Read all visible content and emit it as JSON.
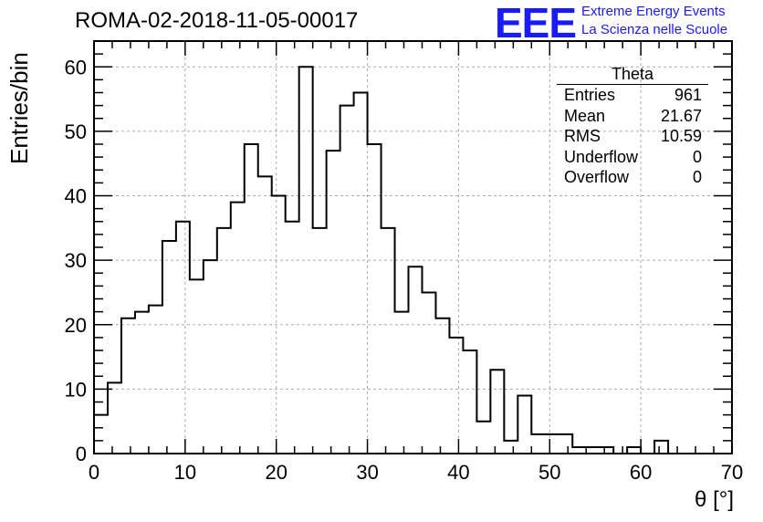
{
  "title": "ROMA-02-2018-11-05-00017",
  "logo": {
    "mark": "EEE",
    "line1": "Extreme Energy Events",
    "line2": "La Scienza nelle Scuole",
    "color": "#1a1aff"
  },
  "stats": {
    "name": "Theta",
    "rows": [
      {
        "label": "Entries",
        "value": "961"
      },
      {
        "label": "Mean",
        "value": "21.67"
      },
      {
        "label": "RMS",
        "value": "10.59"
      },
      {
        "label": "Underflow",
        "value": "0"
      },
      {
        "label": "Overflow",
        "value": "0"
      }
    ]
  },
  "chart_data": {
    "type": "bar",
    "histogram": true,
    "title": "ROMA-02-2018-11-05-00017",
    "xlabel": "θ [°]",
    "ylabel": "Entries/bin",
    "xlim": [
      0,
      70
    ],
    "ylim": [
      0,
      64
    ],
    "xticks": [
      0,
      10,
      20,
      30,
      40,
      50,
      60,
      70
    ],
    "yticks": [
      0,
      10,
      20,
      30,
      40,
      50,
      60
    ],
    "grid": true,
    "bin_width": 1.5,
    "bin_edges_start": 0,
    "values": [
      6,
      11,
      21,
      22,
      23,
      33,
      36,
      27,
      30,
      35,
      39,
      48,
      43,
      40,
      36,
      60,
      35,
      47,
      54,
      56,
      48,
      35,
      22,
      29,
      25,
      21,
      18,
      16,
      5,
      13,
      2,
      9,
      3,
      3,
      3,
      1,
      1,
      1,
      0,
      1,
      0,
      2,
      0,
      0,
      0,
      0,
      0
    ]
  }
}
